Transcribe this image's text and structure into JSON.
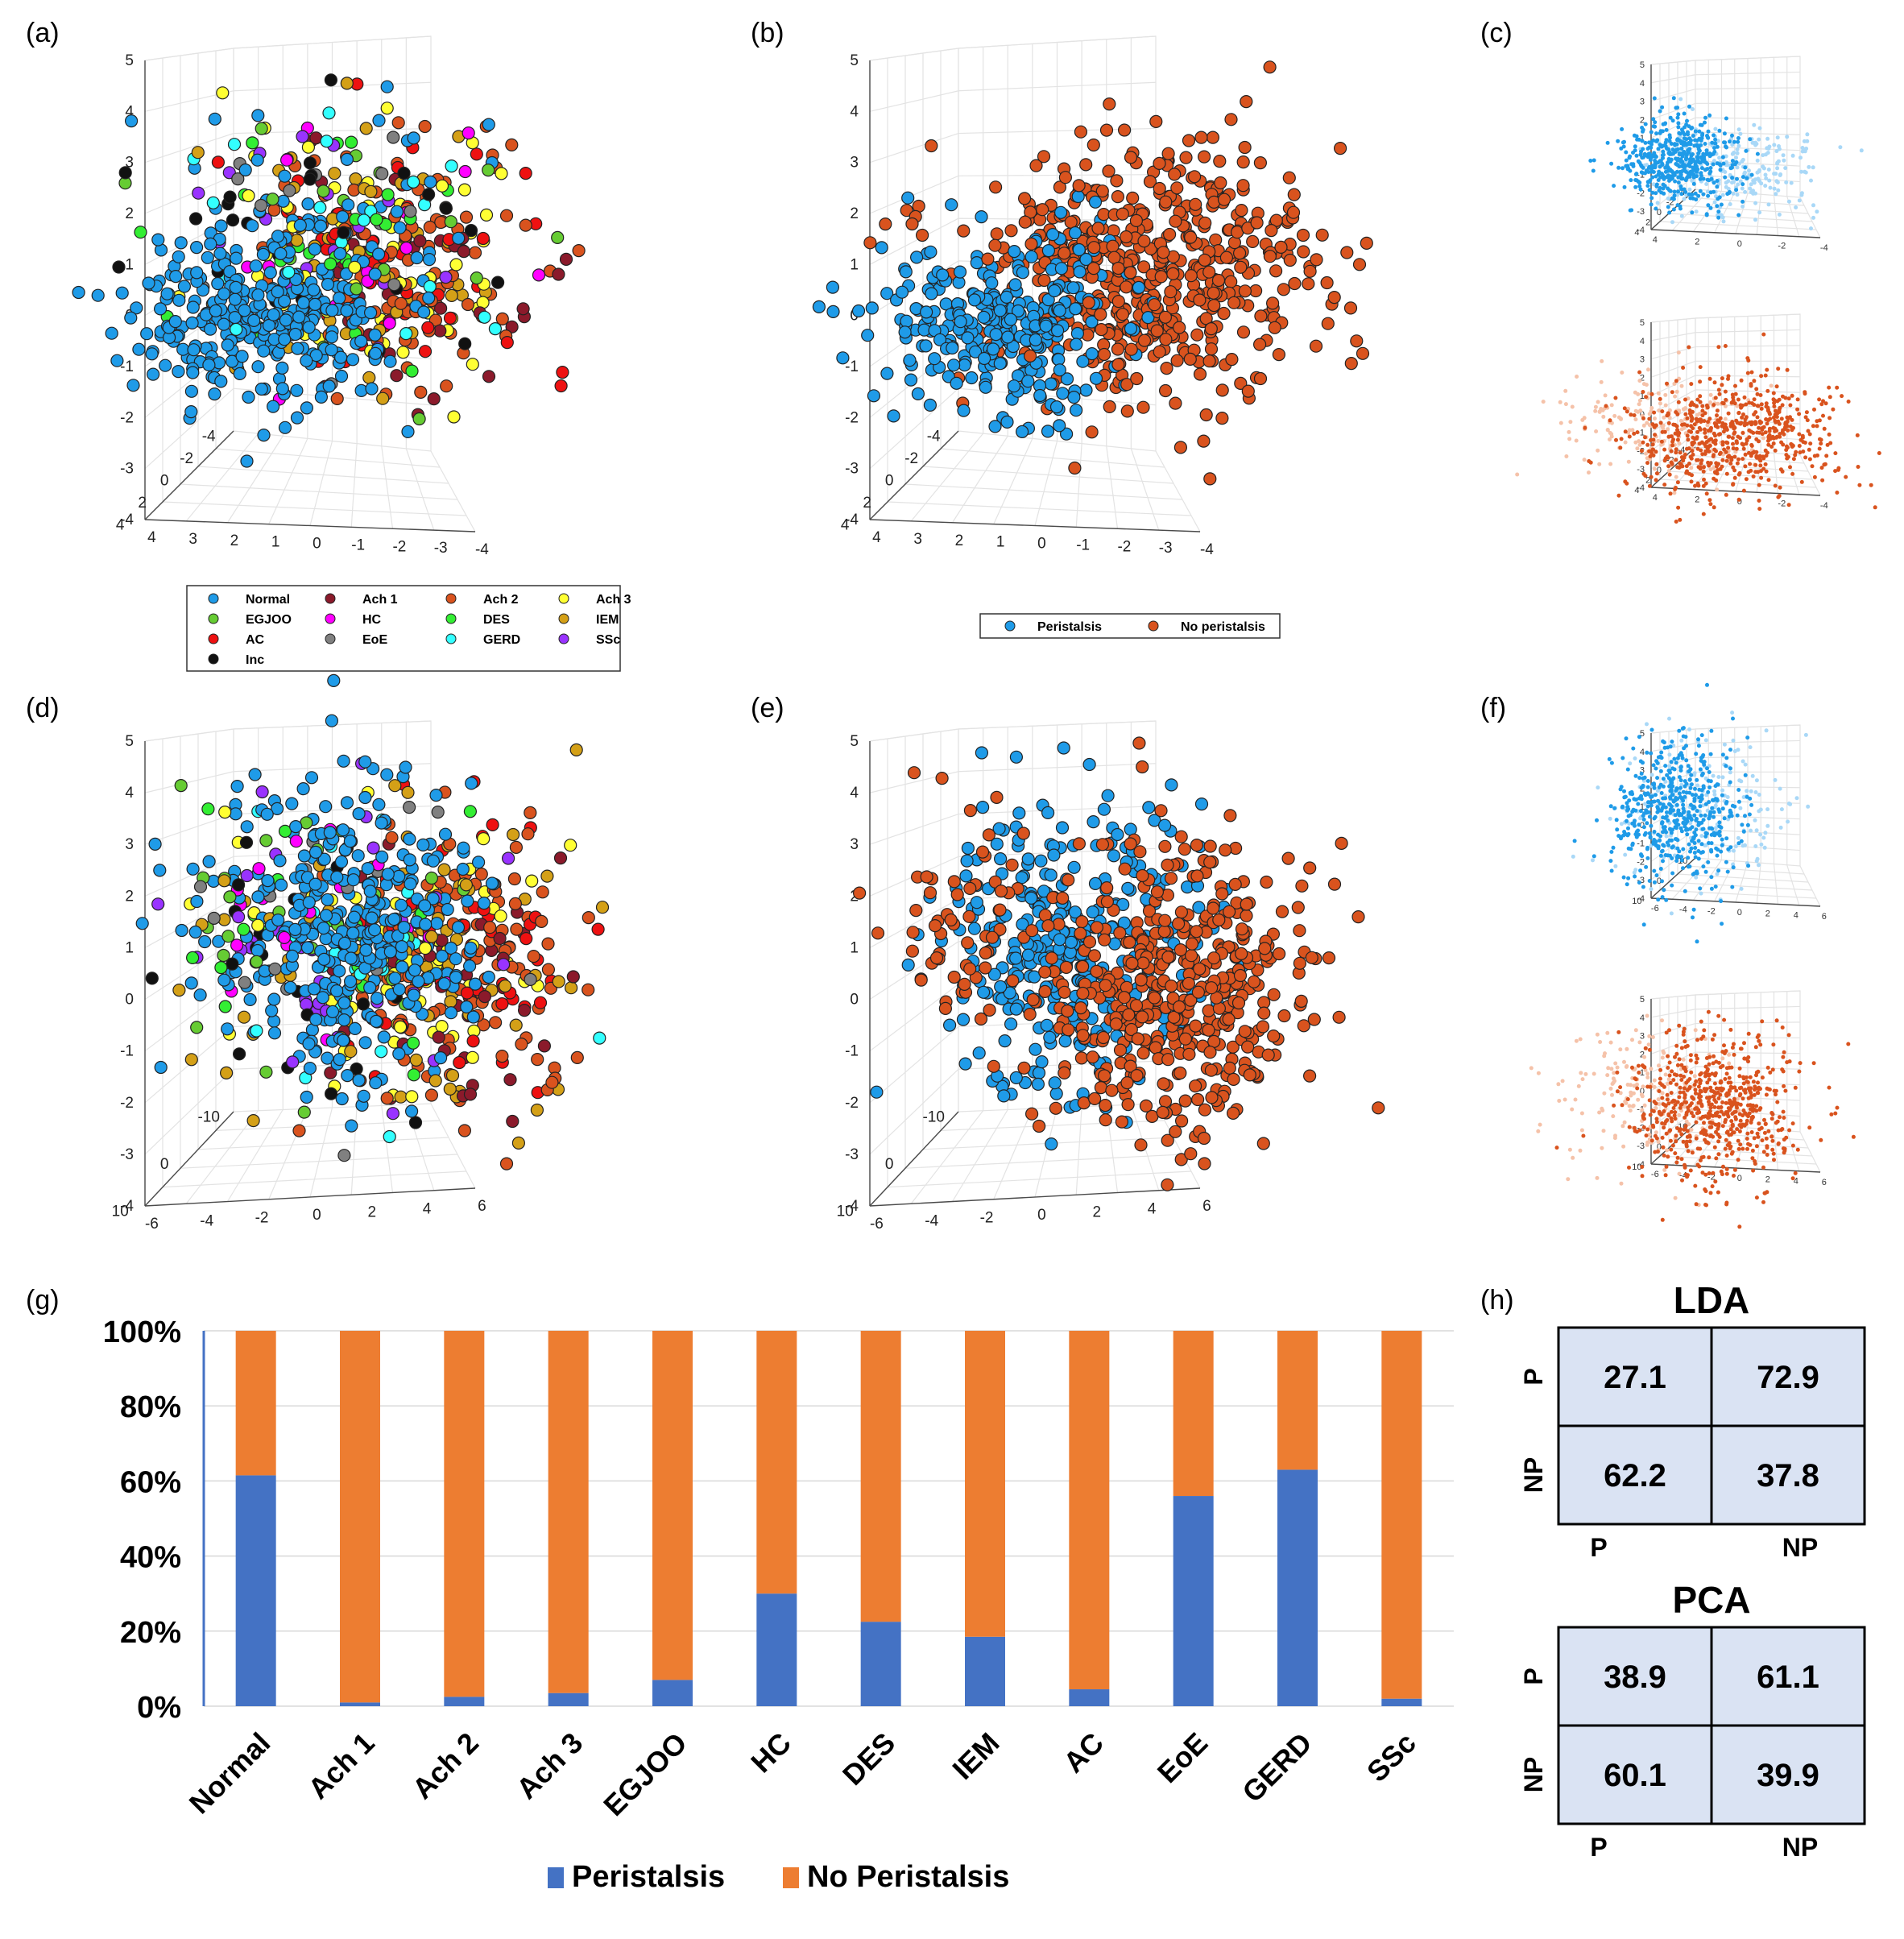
{
  "panels": {
    "a": "(a)",
    "b": "(b)",
    "c": "(c)",
    "d": "(d)",
    "e": "(e)",
    "f": "(f)",
    "g": "(g)",
    "h": "(h)"
  },
  "colors": {
    "peristalsis": "#1f9be8",
    "no_peristalsis": "#d9531e",
    "bar_peristalsis": "#4472c4",
    "bar_no_peristalsis": "#ed7d31",
    "cm_fill": "#dae3f3"
  },
  "legend_ac": [
    {
      "label": "Normal",
      "color": "#1f9be8"
    },
    {
      "label": "Ach 1",
      "color": "#8b1a2b"
    },
    {
      "label": "Ach 2",
      "color": "#d9531e"
    },
    {
      "label": "Ach 3",
      "color": "#ffff33"
    },
    {
      "label": "EGJOO",
      "color": "#66cc33"
    },
    {
      "label": "HC",
      "color": "#ff00ff"
    },
    {
      "label": "DES",
      "color": "#33ee33"
    },
    {
      "label": "IEM",
      "color": "#d4a017"
    },
    {
      "label": "AC",
      "color": "#ee1111"
    },
    {
      "label": "EoE",
      "color": "#808080"
    },
    {
      "label": "GERD",
      "color": "#33ffff"
    },
    {
      "label": "SSc",
      "color": "#9933ff"
    },
    {
      "label": "Inc",
      "color": "#111111"
    }
  ],
  "legend_be": [
    {
      "label": "Peristalsis",
      "color": "#1f9be8"
    },
    {
      "label": "No peristalsis",
      "color": "#d9531e"
    }
  ],
  "axes_ab": {
    "z_ticks": [
      "5",
      "4",
      "3",
      "2",
      "1",
      "0",
      "-1",
      "-2",
      "-3",
      "-4"
    ],
    "y_ticks": [
      "-4",
      "-2",
      "0",
      "2",
      "4"
    ],
    "x_ticks": [
      "4",
      "3",
      "2",
      "1",
      "0",
      "-1",
      "-2",
      "-3",
      "-4"
    ]
  },
  "axes_de": {
    "z_ticks": [
      "5",
      "4",
      "3",
      "2",
      "1",
      "0",
      "-1",
      "-2",
      "-3",
      "-4"
    ],
    "y_ticks": [
      "-10",
      "0",
      "10"
    ],
    "x_ticks": [
      "-6",
      "-4",
      "-2",
      "0",
      "2",
      "4",
      "6"
    ]
  },
  "axes_c": {
    "z_ticks": [
      "5",
      "4",
      "3",
      "2",
      "1",
      "0",
      "-1",
      "-2",
      "-3",
      "-4"
    ],
    "y_ticks": [
      "-4",
      "-2",
      "0",
      "2",
      "4"
    ],
    "x_ticks": [
      "4",
      "2",
      "0",
      "-2",
      "-4"
    ]
  },
  "axes_f": {
    "z_ticks": [
      "5",
      "4",
      "3",
      "2",
      "1",
      "0",
      "-1",
      "-2",
      "-3",
      "-4"
    ],
    "y_ticks": [
      "-10",
      "0",
      "10"
    ],
    "x_ticks": [
      "-6",
      "-4",
      "-2",
      "0",
      "2",
      "4",
      "6"
    ]
  },
  "chart_data": {
    "type": "bar",
    "stacked": true,
    "categories": [
      "Normal",
      "Ach 1",
      "Ach 2",
      "Ach 3",
      "EGJOO",
      "HC",
      "DES",
      "IEM",
      "AC",
      "EoE",
      "GERD",
      "SSc"
    ],
    "series": [
      {
        "name": "Peristalsis",
        "values": [
          61.5,
          1,
          2.5,
          3.5,
          7,
          30,
          22.5,
          18.5,
          4.5,
          56,
          63,
          2
        ]
      },
      {
        "name": "No Peristalsis",
        "values": [
          38.5,
          99,
          97.5,
          96.5,
          93,
          70,
          77.5,
          81.5,
          95.5,
          44,
          37,
          98
        ]
      }
    ],
    "ylim": [
      0,
      100
    ],
    "y_ticks": [
      "0%",
      "20%",
      "40%",
      "60%",
      "80%",
      "100%"
    ],
    "xlabel": "",
    "ylabel": "",
    "title": "",
    "legend_position": "bottom"
  },
  "confusion": {
    "lda": {
      "title": "LDA",
      "rows": [
        "P",
        "NP"
      ],
      "cols": [
        "P",
        "NP"
      ],
      "values": [
        [
          "27.1",
          "72.9"
        ],
        [
          "62.2",
          "37.8"
        ]
      ]
    },
    "pca": {
      "title": "PCA",
      "rows": [
        "P",
        "NP"
      ],
      "cols": [
        "P",
        "NP"
      ],
      "values": [
        [
          "38.9",
          "61.1"
        ],
        [
          "60.1",
          "39.9"
        ]
      ]
    }
  }
}
